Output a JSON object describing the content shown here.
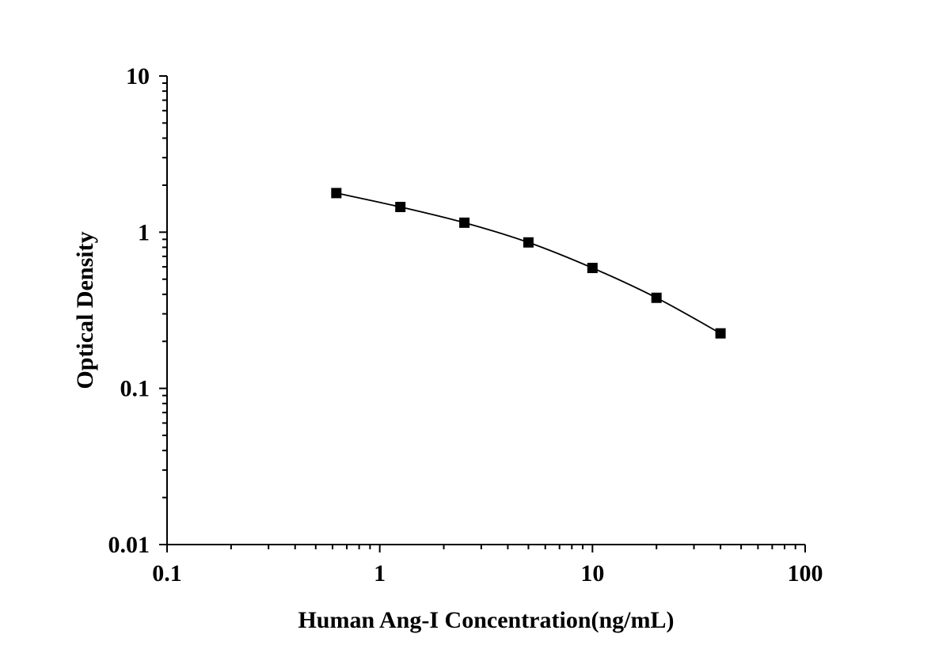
{
  "chart_data": {
    "type": "line",
    "title": "",
    "xlabel": "Human Ang-I Concentration(ng/mL)",
    "ylabel": "Optical Density",
    "x_scale": "log",
    "y_scale": "log",
    "xlim": [
      0.1,
      100
    ],
    "ylim": [
      0.01,
      10
    ],
    "x_tick_labels": [
      "0.1",
      "1",
      "10",
      "100"
    ],
    "y_tick_labels": [
      "0.01",
      "0.1",
      "1",
      "10"
    ],
    "grid": false,
    "marker": "square",
    "line_color": "#000000",
    "marker_color": "#000000",
    "series": [
      {
        "x": [
          0.625,
          1.25,
          2.5,
          5,
          10,
          20,
          40
        ],
        "y": [
          1.78,
          1.45,
          1.15,
          0.86,
          0.59,
          0.38,
          0.225
        ]
      }
    ]
  }
}
